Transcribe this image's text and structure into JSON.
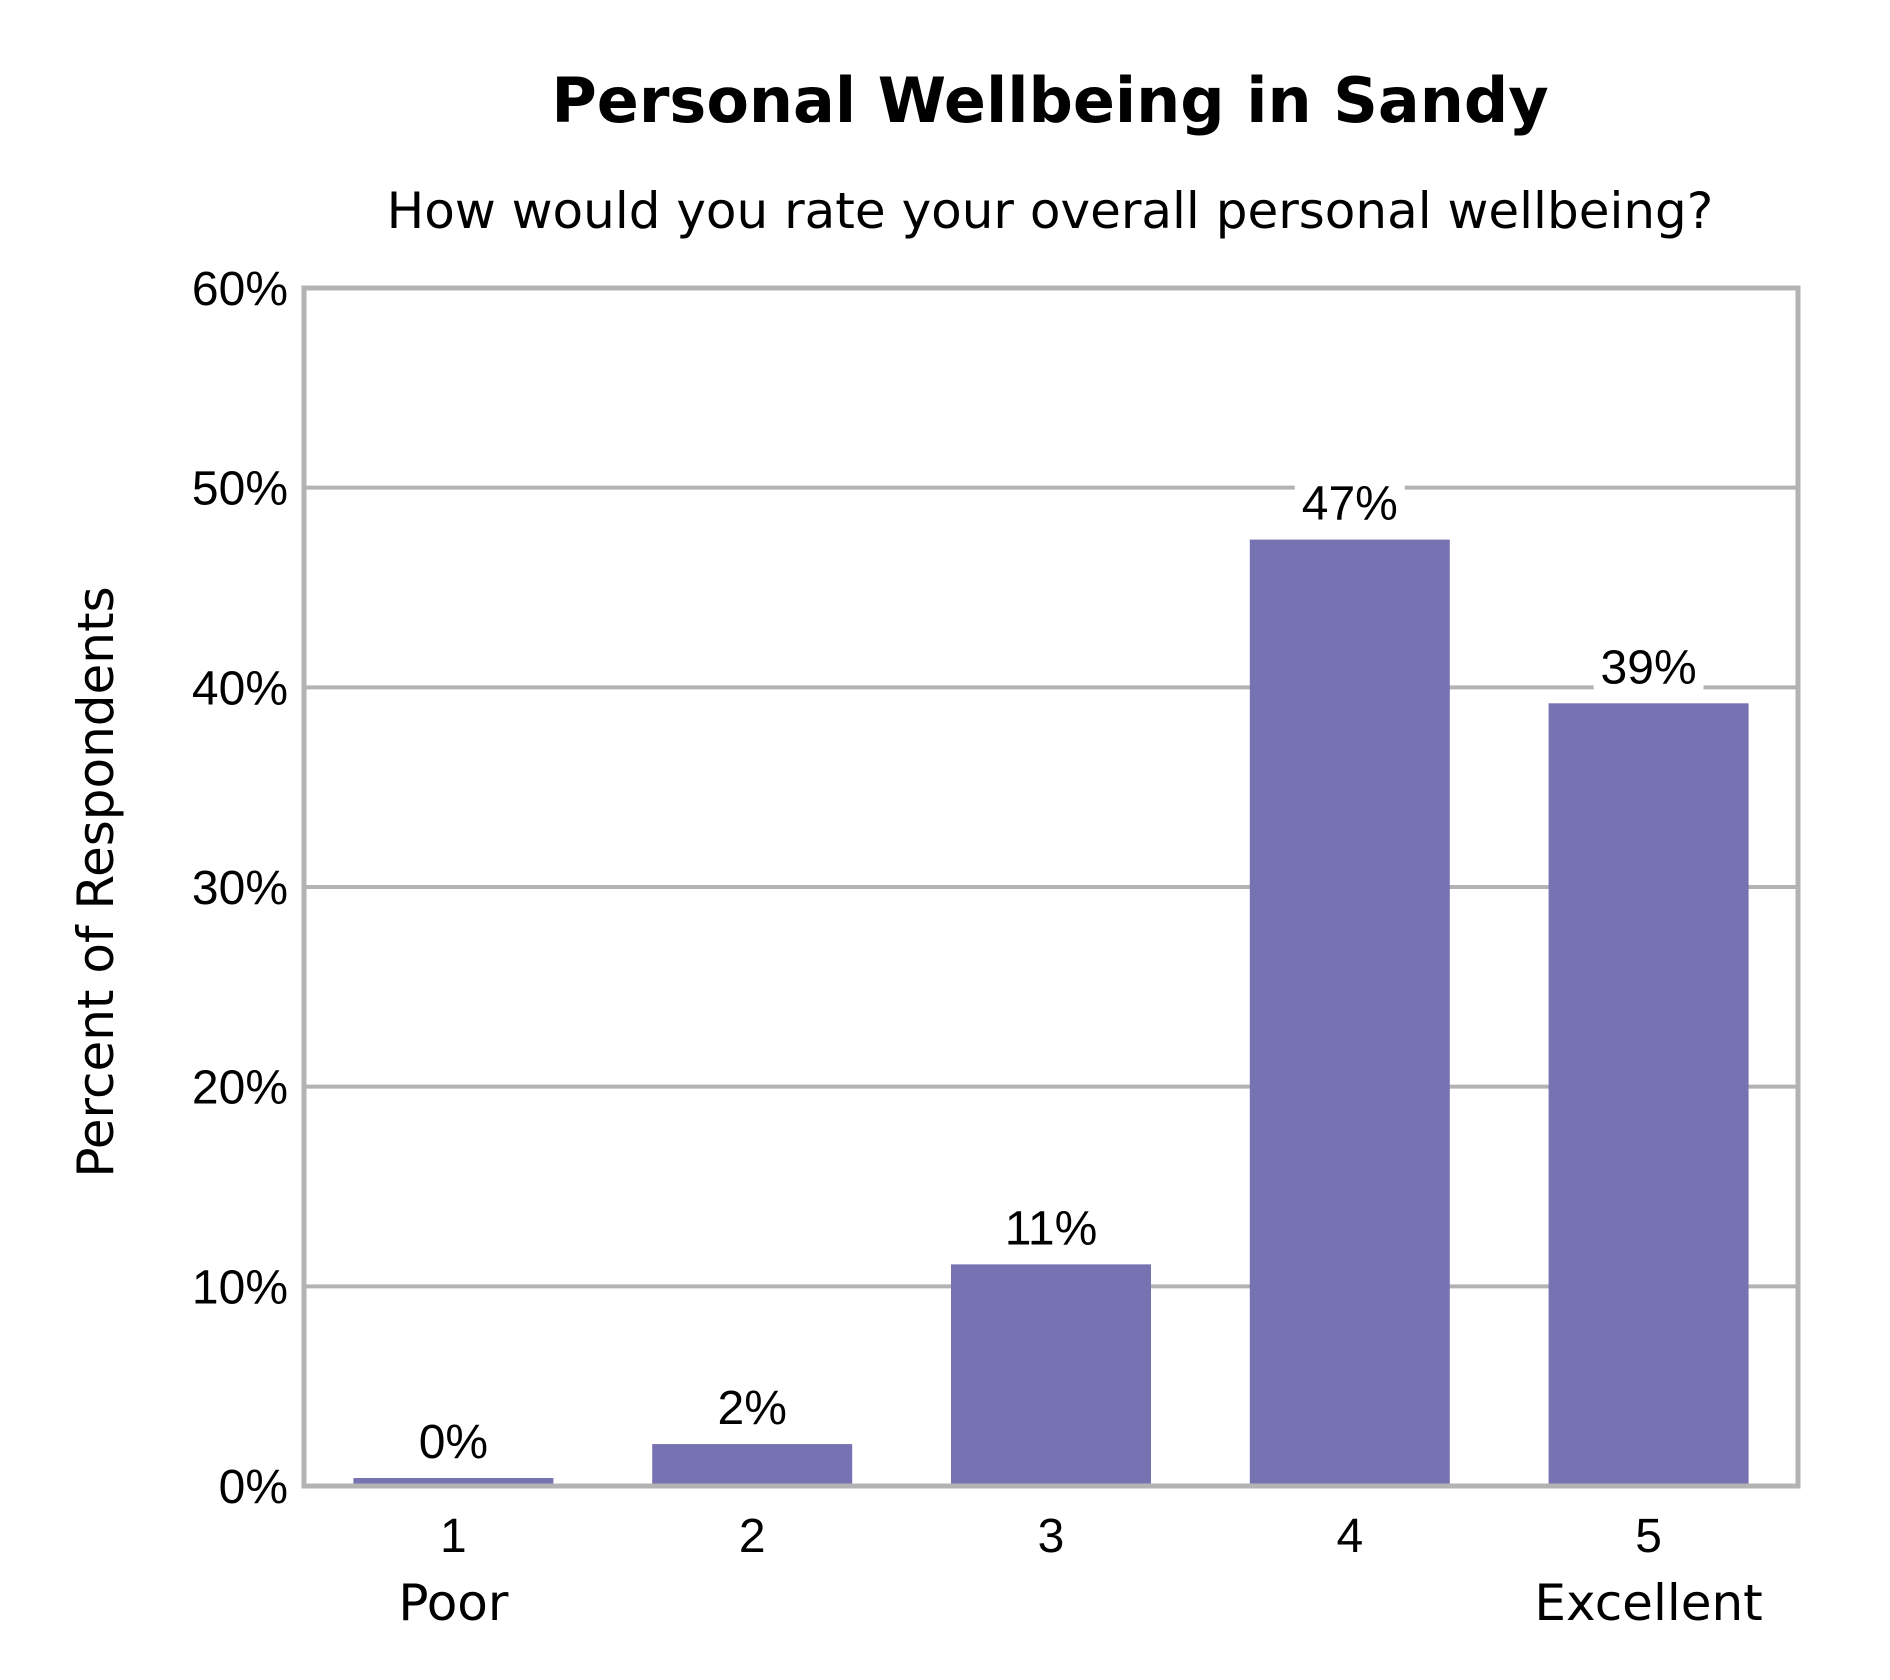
{
  "chart_data": {
    "type": "bar",
    "title": "Personal Wellbeing in Sandy",
    "subtitle": "How would you rate your overall personal wellbeing?",
    "ylabel": "Percent of Respondents",
    "xlabel": "",
    "categories": [
      "1",
      "2",
      "3",
      "4",
      "5"
    ],
    "category_sublabels": [
      "Poor",
      "",
      "",
      "",
      "Excellent"
    ],
    "values": [
      0.4,
      2.1,
      11.1,
      47.4,
      39.2
    ],
    "data_labels": [
      "0%",
      "2%",
      "11%",
      "47%",
      "39%"
    ],
    "ylim": [
      0,
      60
    ],
    "yticks": [
      0,
      10,
      20,
      30,
      40,
      50,
      60
    ],
    "ytick_labels": [
      "0%",
      "10%",
      "20%",
      "30%",
      "40%",
      "50%",
      "60%"
    ],
    "grid": true,
    "legend": "none",
    "bar_color": "#7772b1",
    "grid_color": "#b3b3b3",
    "frame_color": "#b3b3b3"
  }
}
